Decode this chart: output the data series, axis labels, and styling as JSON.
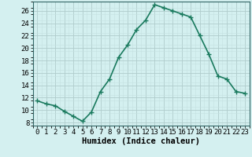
{
  "x": [
    0,
    1,
    2,
    3,
    4,
    5,
    6,
    7,
    8,
    9,
    10,
    11,
    12,
    13,
    14,
    15,
    16,
    17,
    18,
    19,
    20,
    21,
    22,
    23
  ],
  "y": [
    11.5,
    11.0,
    10.7,
    9.8,
    9.0,
    8.2,
    9.7,
    13.0,
    15.0,
    18.5,
    20.5,
    23.0,
    24.5,
    27.0,
    26.5,
    26.0,
    25.5,
    25.0,
    22.0,
    19.0,
    15.5,
    15.0,
    13.0,
    12.7
  ],
  "line_color": "#1a7a5e",
  "marker": "+",
  "marker_size": 4,
  "bg_color": "#d4f0f0",
  "grid_major_color": "#b8d8d8",
  "grid_minor_color": "#c8e8e8",
  "xlabel": "Humidex (Indice chaleur)",
  "xlim": [
    -0.5,
    23.5
  ],
  "ylim": [
    7.5,
    27.5
  ],
  "yticks": [
    8,
    10,
    12,
    14,
    16,
    18,
    20,
    22,
    24,
    26
  ],
  "xticks": [
    0,
    1,
    2,
    3,
    4,
    5,
    6,
    7,
    8,
    9,
    10,
    11,
    12,
    13,
    14,
    15,
    16,
    17,
    18,
    19,
    20,
    21,
    22,
    23
  ],
  "xlabel_fontsize": 7.5,
  "tick_fontsize": 6.5,
  "line_width": 1.2,
  "marker_linewidth": 1.0
}
